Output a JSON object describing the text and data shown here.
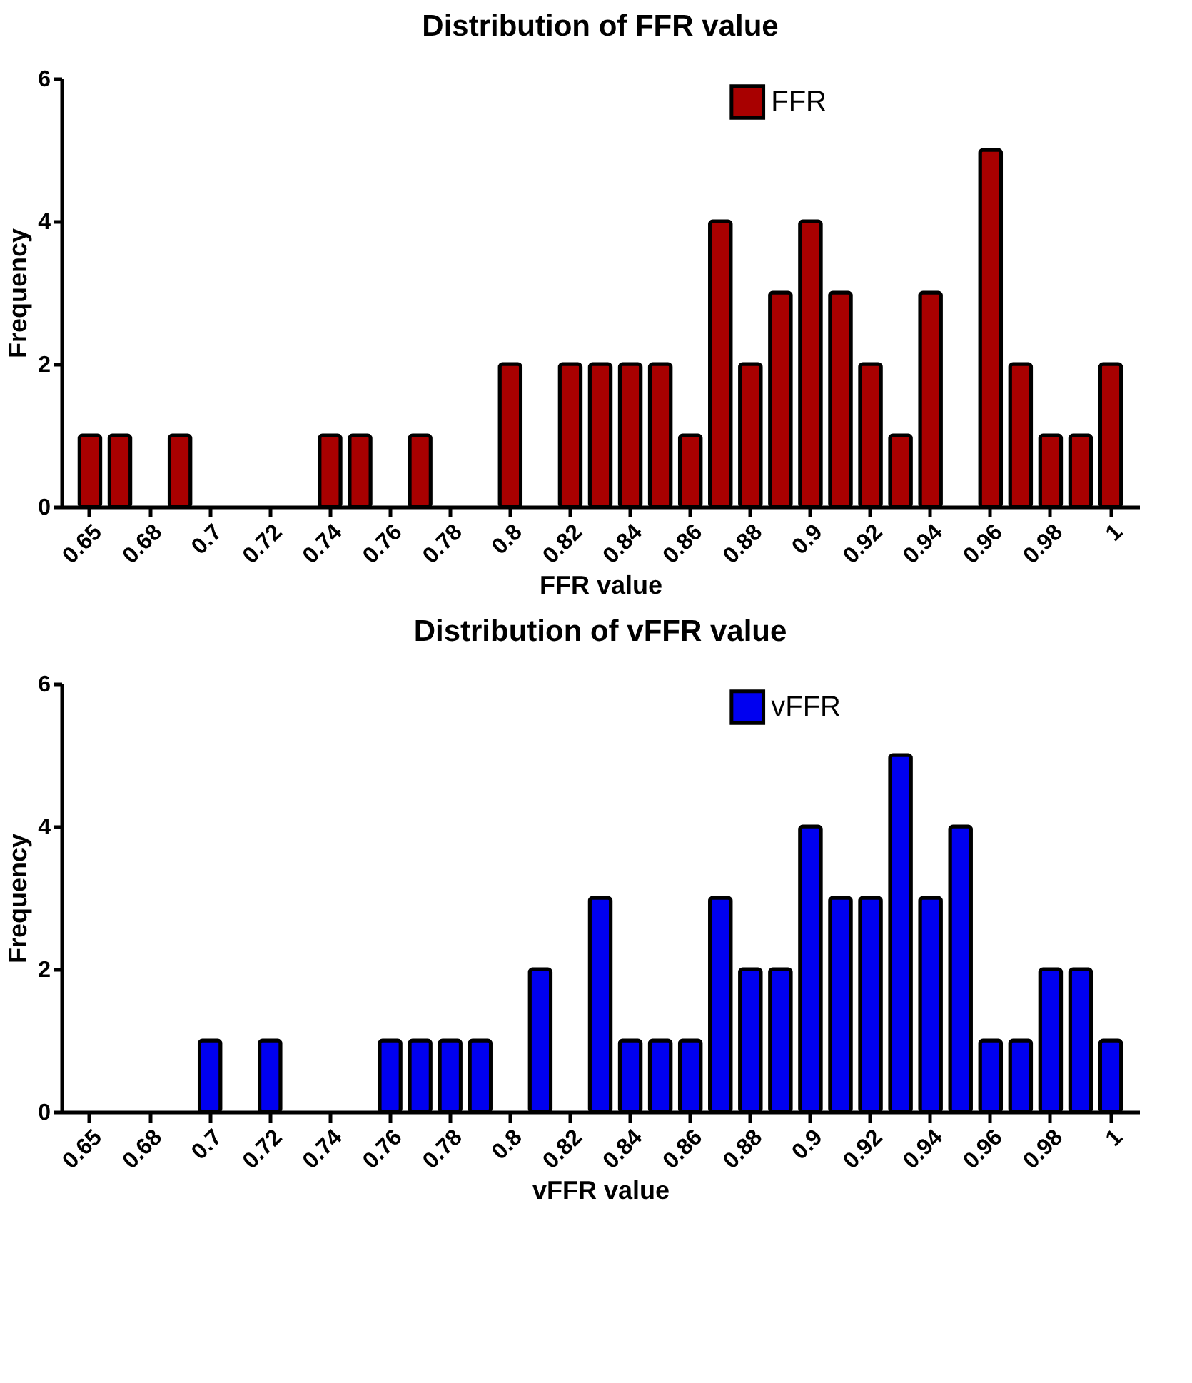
{
  "chart_data": [
    {
      "type": "bar",
      "title": "Distribution of FFR value",
      "xlabel": "FFR value",
      "ylabel": "Frequency",
      "categories": [
        "0.65",
        null,
        "0.68",
        null,
        "0.7",
        null,
        "0.72",
        null,
        "0.74",
        null,
        "0.76",
        null,
        "0.78",
        null,
        "0.8",
        null,
        "0.82",
        null,
        "0.84",
        null,
        "0.86",
        null,
        "0.88",
        null,
        "0.9",
        null,
        "0.92",
        null,
        "0.94",
        null,
        "0.96",
        null,
        "0.98",
        null,
        "1"
      ],
      "series": [
        {
          "name": "FFR",
          "color": "#a80000",
          "values": [
            1,
            1,
            null,
            1,
            null,
            null,
            null,
            null,
            1,
            1,
            null,
            1,
            null,
            null,
            2,
            null,
            2,
            2,
            2,
            2,
            1,
            4,
            2,
            3,
            4,
            3,
            2,
            1,
            3,
            null,
            5,
            2,
            1,
            1,
            2
          ]
        }
      ],
      "ylim": [
        0,
        6
      ],
      "yticks": [
        0,
        2,
        4,
        6
      ],
      "grid": false,
      "legend": "top"
    },
    {
      "type": "bar",
      "title": "Distribution of vFFR value",
      "xlabel": "vFFR value",
      "ylabel": "Frequency",
      "categories": [
        "0.65",
        null,
        "0.68",
        null,
        "0.7",
        null,
        "0.72",
        null,
        "0.74",
        null,
        "0.76",
        null,
        "0.78",
        null,
        "0.8",
        null,
        "0.82",
        null,
        "0.84",
        null,
        "0.86",
        null,
        "0.88",
        null,
        "0.9",
        null,
        "0.92",
        null,
        "0.94",
        null,
        "0.96",
        null,
        "0.98",
        null,
        "1"
      ],
      "series": [
        {
          "name": "vFFR",
          "color": "#0000f0",
          "values": [
            null,
            null,
            null,
            null,
            1,
            null,
            1,
            null,
            null,
            null,
            1,
            1,
            1,
            1,
            null,
            2,
            null,
            3,
            1,
            1,
            1,
            3,
            2,
            2,
            4,
            3,
            3,
            5,
            3,
            4,
            1,
            1,
            2,
            2,
            1
          ]
        }
      ],
      "ylim": [
        0,
        6
      ],
      "yticks": [
        0,
        2,
        4,
        6
      ],
      "grid": false,
      "legend": "top"
    }
  ]
}
